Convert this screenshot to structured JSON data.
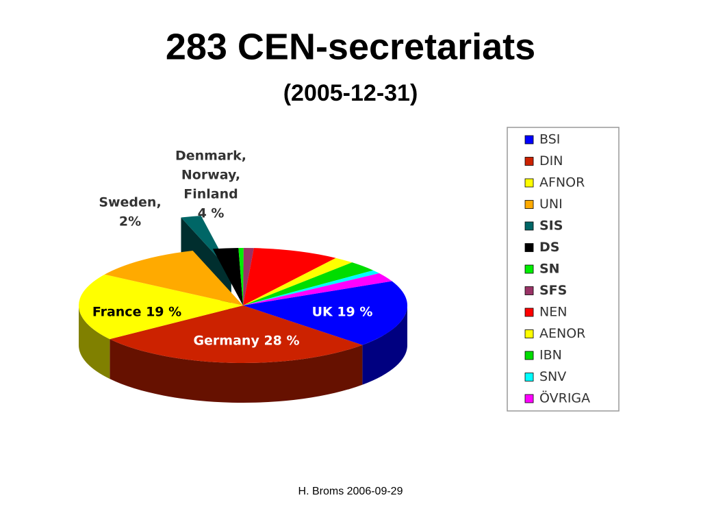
{
  "chart_data": {
    "type": "pie",
    "title": "283 CEN-secretariats",
    "subtitle": "(2005-12-31)",
    "categories": [
      "BSI",
      "DIN",
      "AFNOR",
      "UNI",
      "SIS",
      "DS",
      "SN",
      "SFS",
      "NEN",
      "AENOR",
      "IBN",
      "SNV",
      "ÖVRIGA"
    ],
    "values": [
      19,
      28,
      19,
      11,
      2,
      2.5,
      0.5,
      1,
      8.5,
      2,
      3,
      1,
      2.5
    ],
    "colors": [
      "#0000ff",
      "#cc2200",
      "#ffff00",
      "#ffaa00",
      "#006666",
      "#000000",
      "#00ee00",
      "#993366",
      "#ff0000",
      "#ffff00",
      "#00dd00",
      "#00ffff",
      "#ff00ff"
    ],
    "legend_bold": [
      false,
      false,
      false,
      false,
      true,
      true,
      true,
      true,
      false,
      false,
      false,
      false,
      false
    ],
    "exploded": [
      false,
      false,
      false,
      false,
      true,
      false,
      false,
      false,
      false,
      false,
      false,
      false,
      false
    ],
    "annotations": [
      "UK 19 %",
      "Germany 28 %",
      "France 19 %",
      [
        "Sweden,",
        "2%"
      ],
      [
        "Denmark,",
        "Norway,",
        "Finland",
        "4 %"
      ]
    ],
    "legend": "right"
  },
  "footer": "H. Broms 2006-09-29"
}
